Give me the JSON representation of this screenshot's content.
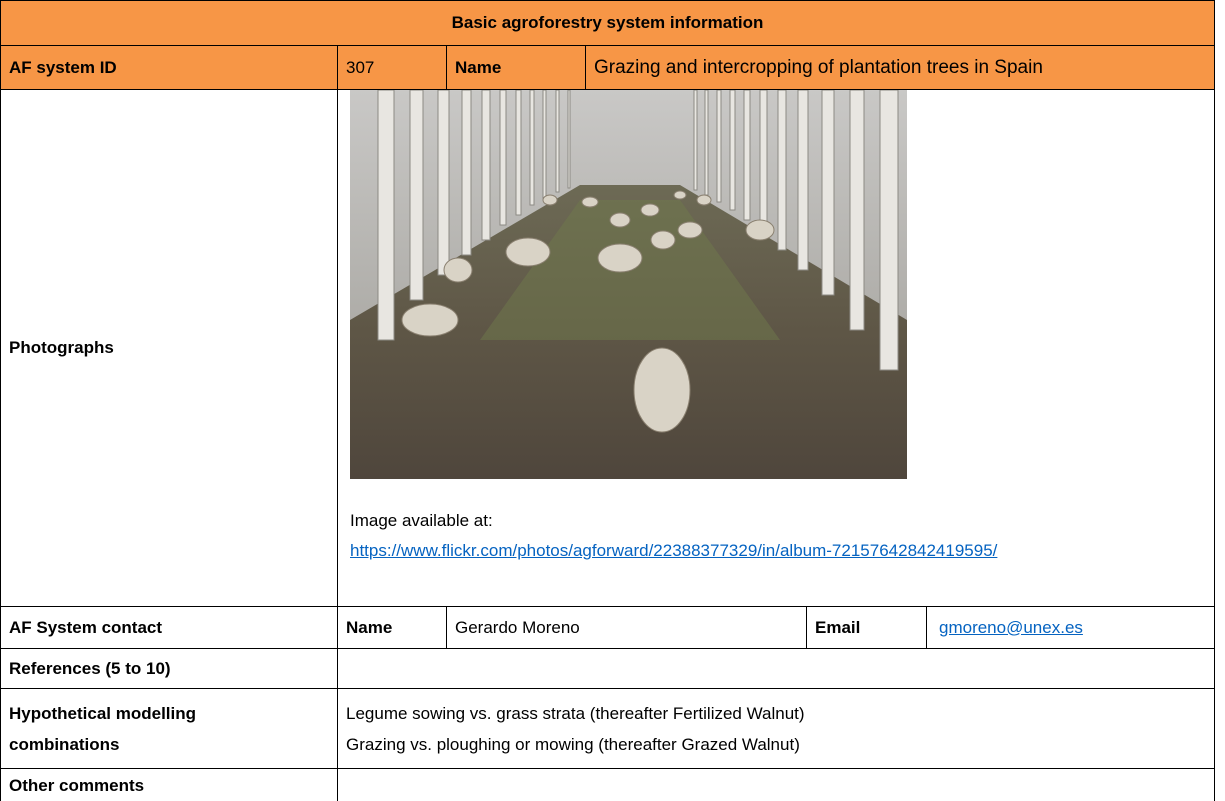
{
  "header": {
    "title": "Basic agroforestry system information"
  },
  "system": {
    "id_label": "AF system ID",
    "id": "307",
    "name_label": "Name",
    "name": "Grazing and intercropping of plantation trees in Spain"
  },
  "photographs": {
    "label": "Photographs",
    "caption": "Image available at:",
    "link": "https://www.flickr.com/photos/agforward/22388377329/in/album-72157642842419595/"
  },
  "contact": {
    "label": "AF System contact",
    "name_label": "Name",
    "name": "Gerardo Moreno",
    "email_label": "Email",
    "email": "gmoreno@unex.es"
  },
  "references": {
    "label": "References (5 to 10)"
  },
  "modelling": {
    "label": "Hypothetical modelling combinations",
    "items": [
      "Legume sowing vs. grass strata (thereafter Fertilized Walnut)",
      "Grazing vs. ploughing or mowing (thereafter Grazed Walnut)"
    ]
  },
  "comments": {
    "label": "Other comments"
  }
}
